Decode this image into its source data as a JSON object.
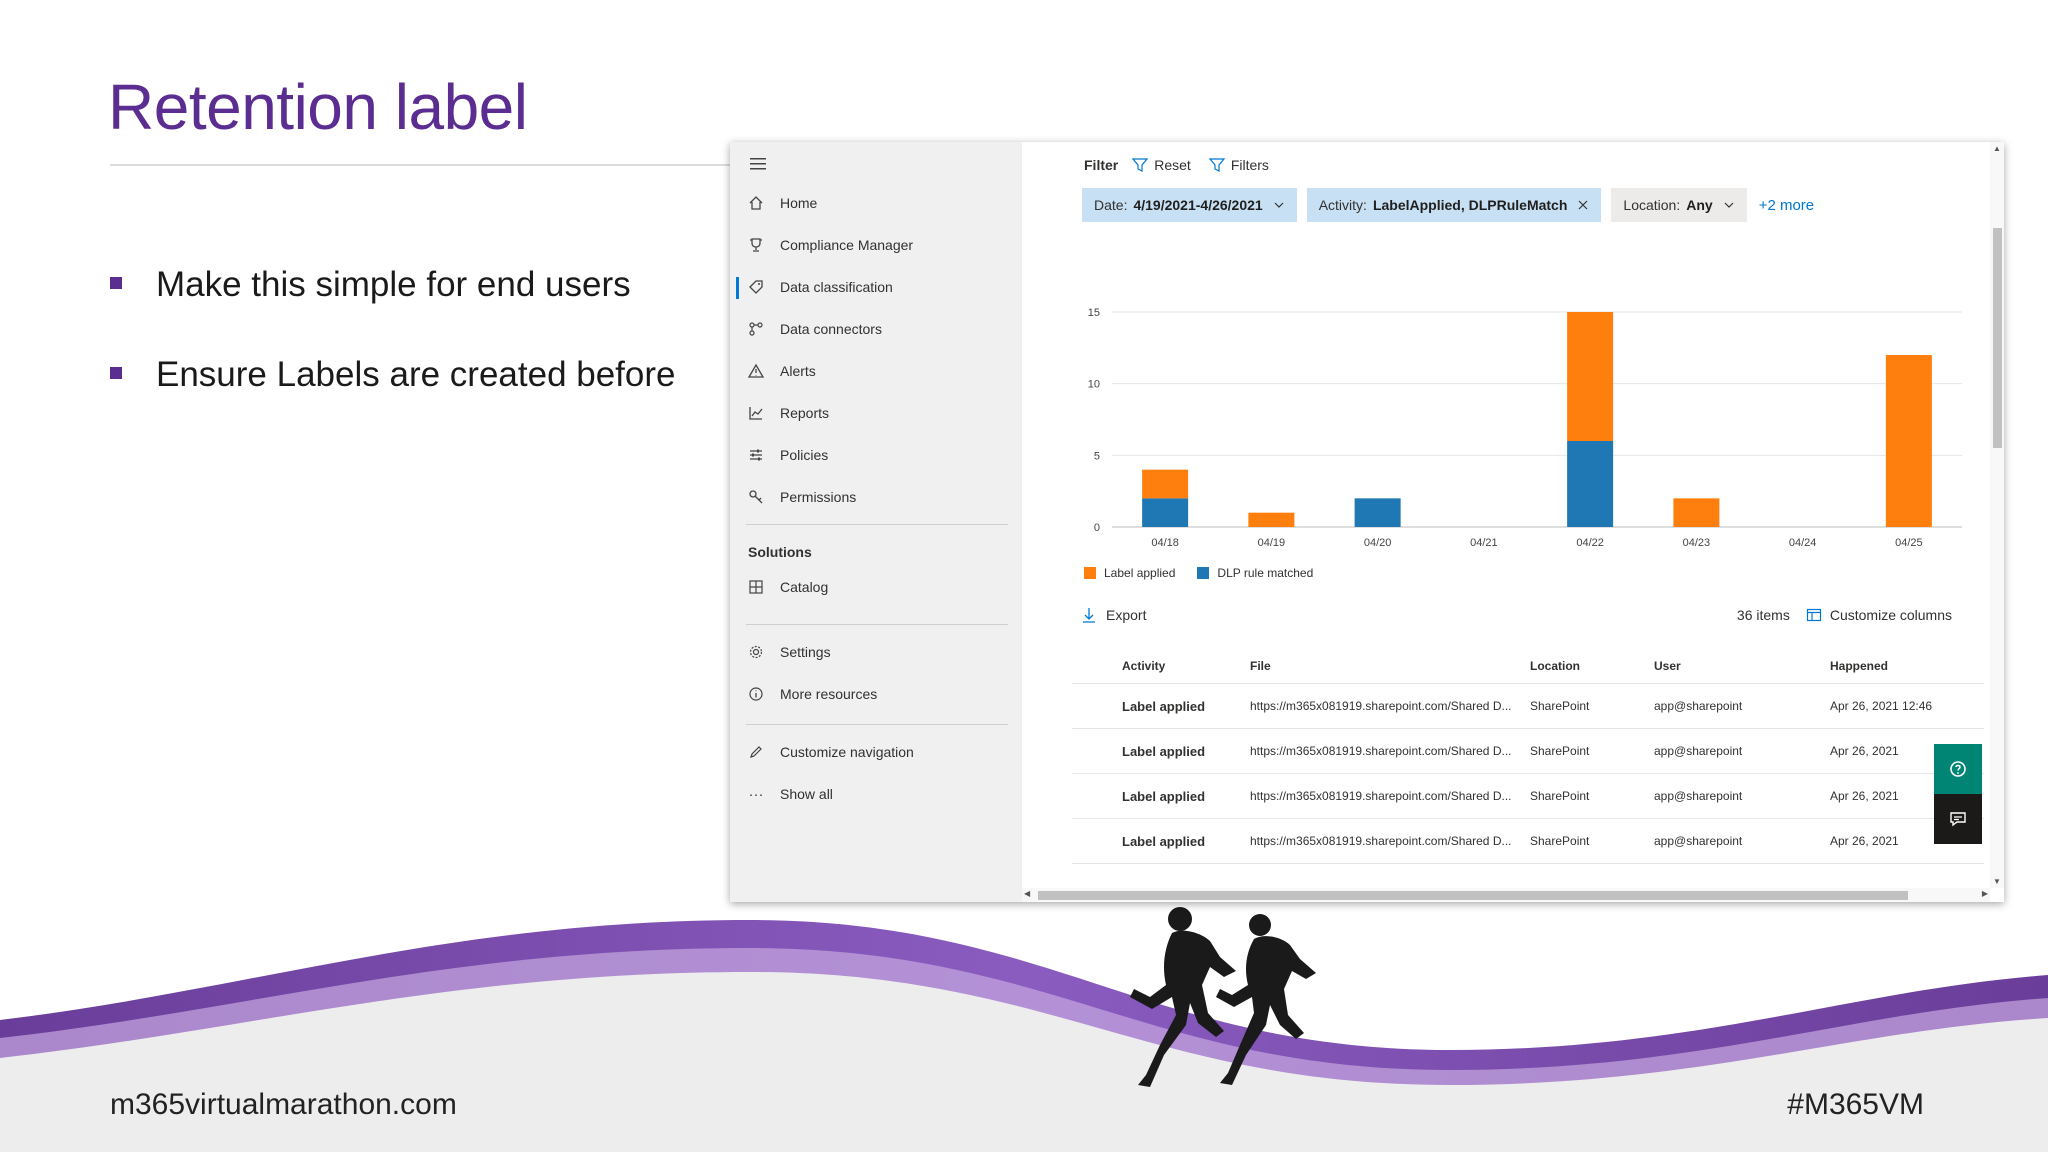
{
  "slide": {
    "title": "Retention label",
    "bullets": [
      "Make this simple for end users",
      "Ensure Labels are created before"
    ],
    "footer_left": "m365virtualmarathon.com",
    "footer_right": "#M365VM",
    "brand_color": "#5c2d91"
  },
  "nav": {
    "menu_icon": "hamburger-icon",
    "items": [
      {
        "label": "Home",
        "icon": "home-icon"
      },
      {
        "label": "Compliance Manager",
        "icon": "trophy-icon"
      },
      {
        "label": "Data classification",
        "icon": "tag-icon",
        "active": true
      },
      {
        "label": "Data connectors",
        "icon": "connector-icon"
      },
      {
        "label": "Alerts",
        "icon": "warning-icon"
      },
      {
        "label": "Reports",
        "icon": "chart-icon"
      },
      {
        "label": "Policies",
        "icon": "sliders-icon"
      },
      {
        "label": "Permissions",
        "icon": "key-icon"
      }
    ],
    "solutions_heading": "Solutions",
    "catalog": "Catalog",
    "settings": "Settings",
    "more_resources": "More resources",
    "customize_navigation": "Customize navigation",
    "show_all": "Show all"
  },
  "filterbar": {
    "label": "Filter",
    "reset": "Reset",
    "filters": "Filters"
  },
  "pills": {
    "date_key": "Date:",
    "date_value": "4/19/2021-4/26/2021",
    "activity_key": "Activity:",
    "activity_value": "LabelApplied, DLPRuleMatch",
    "location_key": "Location:",
    "location_value": "Any",
    "more": "+2 more"
  },
  "chart_data": {
    "type": "bar",
    "stacked": true,
    "categories": [
      "04/18",
      "04/19",
      "04/20",
      "04/21",
      "04/22",
      "04/23",
      "04/24",
      "04/25"
    ],
    "series": [
      {
        "name": "DLP rule matched",
        "color": "#1f77b4",
        "values": [
          2,
          0,
          2,
          0,
          6,
          0,
          0,
          0
        ]
      },
      {
        "name": "Label applied",
        "color": "#ff7f0e",
        "values": [
          2,
          1,
          0,
          0,
          9,
          2,
          0,
          12
        ]
      }
    ],
    "yticks": [
      0,
      5,
      10,
      15
    ],
    "ylim": [
      0,
      15
    ],
    "grid": true,
    "legend": "bottom-left"
  },
  "list": {
    "export": "Export",
    "count": "36 items",
    "customize": "Customize columns",
    "columns": {
      "activity": "Activity",
      "file": "File",
      "location": "Location",
      "user": "User",
      "happened": "Happened"
    },
    "rows": [
      {
        "activity": "Label applied",
        "file": "https://m365x081919.sharepoint.com/Shared D...",
        "location": "SharePoint",
        "user": "app@sharepoint",
        "happened": "Apr 26, 2021 12:46"
      },
      {
        "activity": "Label applied",
        "file": "https://m365x081919.sharepoint.com/Shared D...",
        "location": "SharePoint",
        "user": "app@sharepoint",
        "happened": "Apr 26, 2021"
      },
      {
        "activity": "Label applied",
        "file": "https://m365x081919.sharepoint.com/Shared D...",
        "location": "SharePoint",
        "user": "app@sharepoint",
        "happened": "Apr 26, 2021"
      },
      {
        "activity": "Label applied",
        "file": "https://m365x081919.sharepoint.com/Shared D...",
        "location": "SharePoint",
        "user": "app@sharepoint",
        "happened": "Apr 26, 2021"
      }
    ]
  },
  "floating": {
    "help_icon": "help-icon",
    "feedback_icon": "feedback-icon"
  }
}
